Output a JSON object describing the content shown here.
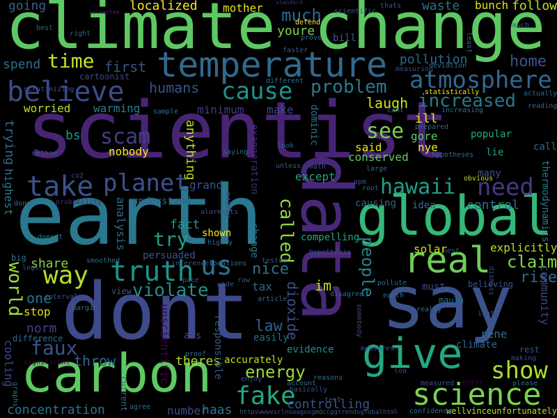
{
  "background": "#000000",
  "words": [
    {
      "text": "climate change",
      "color": "#5ec962"
    },
    {
      "text": "scientist",
      "color": "#482475"
    },
    {
      "text": "earth",
      "color": "#2a788e"
    },
    {
      "text": "dont",
      "color": "#3e4a89"
    },
    {
      "text": "data",
      "color": "#482878"
    },
    {
      "text": "say",
      "color": "#3b528b"
    },
    {
      "text": "carbon",
      "color": "#5ec962"
    },
    {
      "text": "global",
      "color": "#35b779"
    },
    {
      "text": "temperature",
      "color": "#31688e"
    },
    {
      "text": "give",
      "color": "#22a884"
    },
    {
      "text": "science",
      "color": "#7ad151"
    },
    {
      "text": "real",
      "color": "#6ece58"
    },
    {
      "text": "believe",
      "color": "#3e4a89"
    },
    {
      "text": "atmosphere",
      "color": "#31688e"
    },
    {
      "text": "people",
      "color": "#26828e"
    },
    {
      "text": "truth",
      "color": "#21918c"
    },
    {
      "text": "take",
      "color": "#3b528b"
    },
    {
      "text": "planet",
      "color": "#3b528b"
    },
    {
      "text": "hawaii",
      "color": "#1f9e89"
    },
    {
      "text": "need",
      "color": "#443983"
    },
    {
      "text": "cause",
      "color": "#21918c"
    },
    {
      "text": "way",
      "color": "#b5de2b"
    },
    {
      "text": "us",
      "color": "#2c728e"
    },
    {
      "text": "fake",
      "color": "#22a884"
    },
    {
      "text": "show",
      "color": "#addc30"
    },
    {
      "text": "called",
      "color": "#90d743"
    },
    {
      "text": "see",
      "color": "#7ad151"
    },
    {
      "text": "scam",
      "color": "#433e85"
    },
    {
      "text": "violate",
      "color": "#21918c"
    },
    {
      "text": "problem",
      "color": "#2a788e"
    },
    {
      "text": "increased",
      "color": "#2a788e"
    },
    {
      "text": "time",
      "color": "#c8e020"
    },
    {
      "text": "much",
      "color": "#31688e"
    },
    {
      "text": "world",
      "color": "#a0da39"
    },
    {
      "text": "faux",
      "color": "#3b528b"
    },
    {
      "text": "claim",
      "color": "#86d549"
    },
    {
      "text": "try",
      "color": "#1f9e89"
    },
    {
      "text": "dioxide",
      "color": "#3b528b"
    },
    {
      "text": "energy",
      "color": "#9bd93c"
    },
    {
      "text": "nice",
      "color": "#2c728e"
    },
    {
      "text": "law",
      "color": "#35608d"
    },
    {
      "text": "throw",
      "color": "#31688e"
    },
    {
      "text": "one",
      "color": "#2c728e"
    },
    {
      "text": "rise",
      "color": "#2f6c8e"
    },
    {
      "text": "control",
      "color": "#2f6c8e"
    },
    {
      "text": "laugh",
      "color": "#d2e21b"
    },
    {
      "text": "first",
      "color": "#39568c"
    },
    {
      "text": "humans",
      "color": "#3b528b"
    },
    {
      "text": "home",
      "color": "#3b528b"
    },
    {
      "text": "pollution",
      "color": "#306a8e"
    },
    {
      "text": "youre",
      "color": "#7ad151"
    },
    {
      "text": "localized",
      "color": "#fde725"
    },
    {
      "text": "mother",
      "color": "#dde318"
    },
    {
      "text": "follow",
      "color": "#c2df23"
    },
    {
      "text": "waste",
      "color": "#2c728e"
    },
    {
      "text": "bunch",
      "color": "#e5e419"
    },
    {
      "text": "going",
      "color": "#35608d"
    },
    {
      "text": "spend",
      "color": "#2e6f8e"
    },
    {
      "text": "warming",
      "color": "#277f8e"
    },
    {
      "text": "minimum",
      "color": "#443983"
    },
    {
      "text": "worried",
      "color": "#bddf26"
    },
    {
      "text": "make",
      "color": "#3e4989"
    },
    {
      "text": "anything",
      "color": "#c0df25"
    },
    {
      "text": "nobody",
      "color": "#fde725"
    },
    {
      "text": "bs",
      "color": "#1f968b"
    },
    {
      "text": "trying",
      "color": "#306a8e"
    },
    {
      "text": "highest",
      "color": "#2a788e"
    },
    {
      "text": "grand",
      "color": "#3b528b"
    },
    {
      "text": "understand",
      "color": "#355f8d"
    },
    {
      "text": "analysis",
      "color": "#2f6c8e"
    },
    {
      "text": "fact",
      "color": "#1f968b"
    },
    {
      "text": "share",
      "color": "#86d549"
    },
    {
      "text": "norm",
      "color": "#414287"
    },
    {
      "text": "stop",
      "color": "#dae319"
    },
    {
      "text": "cooling",
      "color": "#3e4a89"
    },
    {
      "text": "difference",
      "color": "#2e6e8e"
    },
    {
      "text": "concentration",
      "color": "#2c728e"
    },
    {
      "text": "number",
      "color": "#3d4e8a"
    },
    {
      "text": "haas",
      "color": "#2c728e"
    },
    {
      "text": "controlling",
      "color": "#3b528b"
    },
    {
      "text": "accurately",
      "color": "#c8e020"
    },
    {
      "text": "theres",
      "color": "#addc30"
    },
    {
      "text": "responsible",
      "color": "#355f8d"
    },
    {
      "text": "unscientific",
      "color": "#440154"
    },
    {
      "text": "ass",
      "color": "#3e4989"
    },
    {
      "text": "easily",
      "color": "#2e6e8e"
    },
    {
      "text": "tax",
      "color": "#31688e"
    },
    {
      "text": "im",
      "color": "#c2df23"
    },
    {
      "text": "evidence",
      "color": "#21918c"
    },
    {
      "text": "climate",
      "color": "#31688e"
    },
    {
      "text": "rene",
      "color": "#2e6e8e"
    },
    {
      "text": "compelling",
      "color": "#22a884"
    },
    {
      "text": "solar",
      "color": "#c8e020"
    },
    {
      "text": "explicitly",
      "color": "#bddf26"
    },
    {
      "text": "nye",
      "color": "#fde725"
    },
    {
      "text": "gore",
      "color": "#5ec962"
    },
    {
      "text": "ill",
      "color": "#fde725"
    },
    {
      "text": "popular",
      "color": "#27ad81"
    },
    {
      "text": "lie",
      "color": "#1f9e89"
    },
    {
      "text": "call",
      "color": "#31688e"
    },
    {
      "text": "many",
      "color": "#3b528b"
    },
    {
      "text": "said",
      "color": "#e5e419"
    },
    {
      "text": "conserved",
      "color": "#65cb5e"
    },
    {
      "text": "except",
      "color": "#20a386"
    },
    {
      "text": "exaggeration",
      "color": "#482878"
    },
    {
      "text": "dominic",
      "color": "#2a788e"
    },
    {
      "text": "shown",
      "color": "#fde725"
    },
    {
      "text": "change",
      "color": "#2a788e"
    },
    {
      "text": "persuaded",
      "color": "#3b528b"
    },
    {
      "text": "causing",
      "color": "#33638d"
    },
    {
      "text": "idea",
      "color": "#306a8e"
    },
    {
      "text": "thermodynamics",
      "color": "#2a788e"
    },
    {
      "text": "community",
      "color": "#414487"
    },
    {
      "text": "actually",
      "color": "#2f6c8e"
    },
    {
      "text": "reading",
      "color": "#2f6c8e"
    },
    {
      "text": "must",
      "color": "#3e4989"
    },
    {
      "text": "believing",
      "color": "#3b528b"
    },
    {
      "text": "bill",
      "color": "#355f8d"
    },
    {
      "text": "cartoonist",
      "color": "#3e4989"
    },
    {
      "text": "statistically",
      "color": "#fde725"
    },
    {
      "text": "deviation",
      "color": "#2e6e8e"
    },
    {
      "text": "measuring",
      "color": "#3d4e8a"
    },
    {
      "text": "increasing",
      "color": "#2f6c8e"
    },
    {
      "text": "different",
      "color": "#2e6e8e"
    },
    {
      "text": "faster",
      "color": "#355f8d"
    },
    {
      "text": "scientific",
      "color": "#355f8d"
    },
    {
      "text": "collected",
      "color": "#482173"
    },
    {
      "text": "standard",
      "color": "#472d7b"
    },
    {
      "text": "defend",
      "color": "#fde725"
    },
    {
      "text": "prove",
      "color": "#31688e"
    },
    {
      "text": "least",
      "color": "#2e6e8e"
    },
    {
      "text": "right",
      "color": "#355f8d"
    },
    {
      "text": "best",
      "color": "#355f8d"
    },
    {
      "text": "scrutinizing",
      "color": "#3b528b"
    },
    {
      "text": "sample",
      "color": "#2e6e8e"
    },
    {
      "text": "method",
      "color": "#355f8d"
    },
    {
      "text": "saying",
      "color": "#2f6c8e"
    },
    {
      "text": "look",
      "color": "#355f8d"
    },
    {
      "text": "unless",
      "color": "#355f8d"
    },
    {
      "text": "math",
      "color": "#3b528b"
    },
    {
      "text": "hypotheses",
      "color": "#2e6e8e"
    },
    {
      "text": "obvious",
      "color": "#bddf26"
    },
    {
      "text": "large",
      "color": "#306a8e"
    },
    {
      "text": "ppm",
      "color": "#3b528b"
    },
    {
      "text": "root",
      "color": "#355f8d"
    },
    {
      "text": "co2",
      "color": "#3b528b"
    },
    {
      "text": "probability",
      "color": "#482878"
    },
    {
      "text": "done",
      "color": "#2e6e8e"
    },
    {
      "text": "doesnt",
      "color": "#2a788e"
    },
    {
      "text": "logic",
      "color": "#3b528b"
    },
    {
      "text": "big",
      "color": "#2e6e8e"
    },
    {
      "text": "smoothed",
      "color": "#2e6e8e"
    },
    {
      "text": "inferences",
      "color": "#3b528b"
    },
    {
      "text": "locations",
      "color": "#2e6e8e"
    },
    {
      "text": "tested",
      "color": "#3b528b"
    },
    {
      "text": "highly",
      "color": "#2e6e8e"
    },
    {
      "text": "mainly",
      "color": "#3e4989"
    },
    {
      "text": "alarmists",
      "color": "#3e4989"
    },
    {
      "text": "view",
      "color": "#3b528b"
    },
    {
      "text": "pace",
      "color": "#3b528b"
    },
    {
      "text": "wide",
      "color": "#3b528b"
    },
    {
      "text": "raw",
      "color": "#3b528b"
    },
    {
      "text": "article",
      "color": "#2e6e8e"
    },
    {
      "text": "disagree",
      "color": "#2e6e8e"
    },
    {
      "text": "pollute",
      "color": "#2e6e8e"
    },
    {
      "text": "hypothesis",
      "color": "#3b528b"
    },
    {
      "text": "nest",
      "color": "#355f8d"
    },
    {
      "text": "dismiss",
      "color": "#3e4989"
    },
    {
      "text": "maula",
      "color": "#2e6e8e"
    },
    {
      "text": "isnt",
      "color": "#3e4989"
    },
    {
      "text": "really",
      "color": "#2e6e8e"
    },
    {
      "text": "making",
      "color": "#3e4989"
    },
    {
      "text": "rest",
      "color": "#3b528b"
    },
    {
      "text": "measures",
      "color": "#3b528b"
    },
    {
      "text": "somebody",
      "color": "#3e4989"
    },
    {
      "text": "intervals",
      "color": "#3b528b"
    },
    {
      "text": "significant",
      "color": "#440154"
    },
    {
      "text": "margin",
      "color": "#2e6e8e"
    },
    {
      "text": "proof",
      "color": "#2e6e8e"
    },
    {
      "text": "enjoy",
      "color": "#3b528b"
    },
    {
      "text": "account",
      "color": "#2e6e8e"
    },
    {
      "text": "basically",
      "color": "#3b528b"
    },
    {
      "text": "reasons",
      "color": "#2e6e8e"
    },
    {
      "text": "current",
      "color": "#2e6e8e"
    },
    {
      "text": "agree",
      "color": "#2e6e8e"
    },
    {
      "text": "graphs",
      "color": "#2e6e8e"
    },
    {
      "text": "httpswwwesrlnoaagovgmdccggtrendsglobalhtml",
      "color": "#3b528b"
    },
    {
      "text": "wellvinceunfortunately",
      "color": "#bddf26"
    },
    {
      "text": "confidence",
      "color": "#2e6e8e"
    },
    {
      "text": "error",
      "color": "#440154"
    },
    {
      "text": "measured",
      "color": "#3b528b"
    },
    {
      "text": "please",
      "color": "#2e6e8e"
    },
    {
      "text": "test",
      "color": "#3b528b"
    },
    {
      "text": "loa",
      "color": "#3b528b"
    },
    {
      "text": "prepared",
      "color": "#2e6e8e"
    },
    {
      "text": "cant",
      "color": "#2e6e8e"
    },
    {
      "text": "thats",
      "color": "#3b528b"
    },
    {
      "text": "earth",
      "color": "#2e6e8e"
    },
    {
      "text": "much",
      "color": "#3b528b"
    }
  ]
}
